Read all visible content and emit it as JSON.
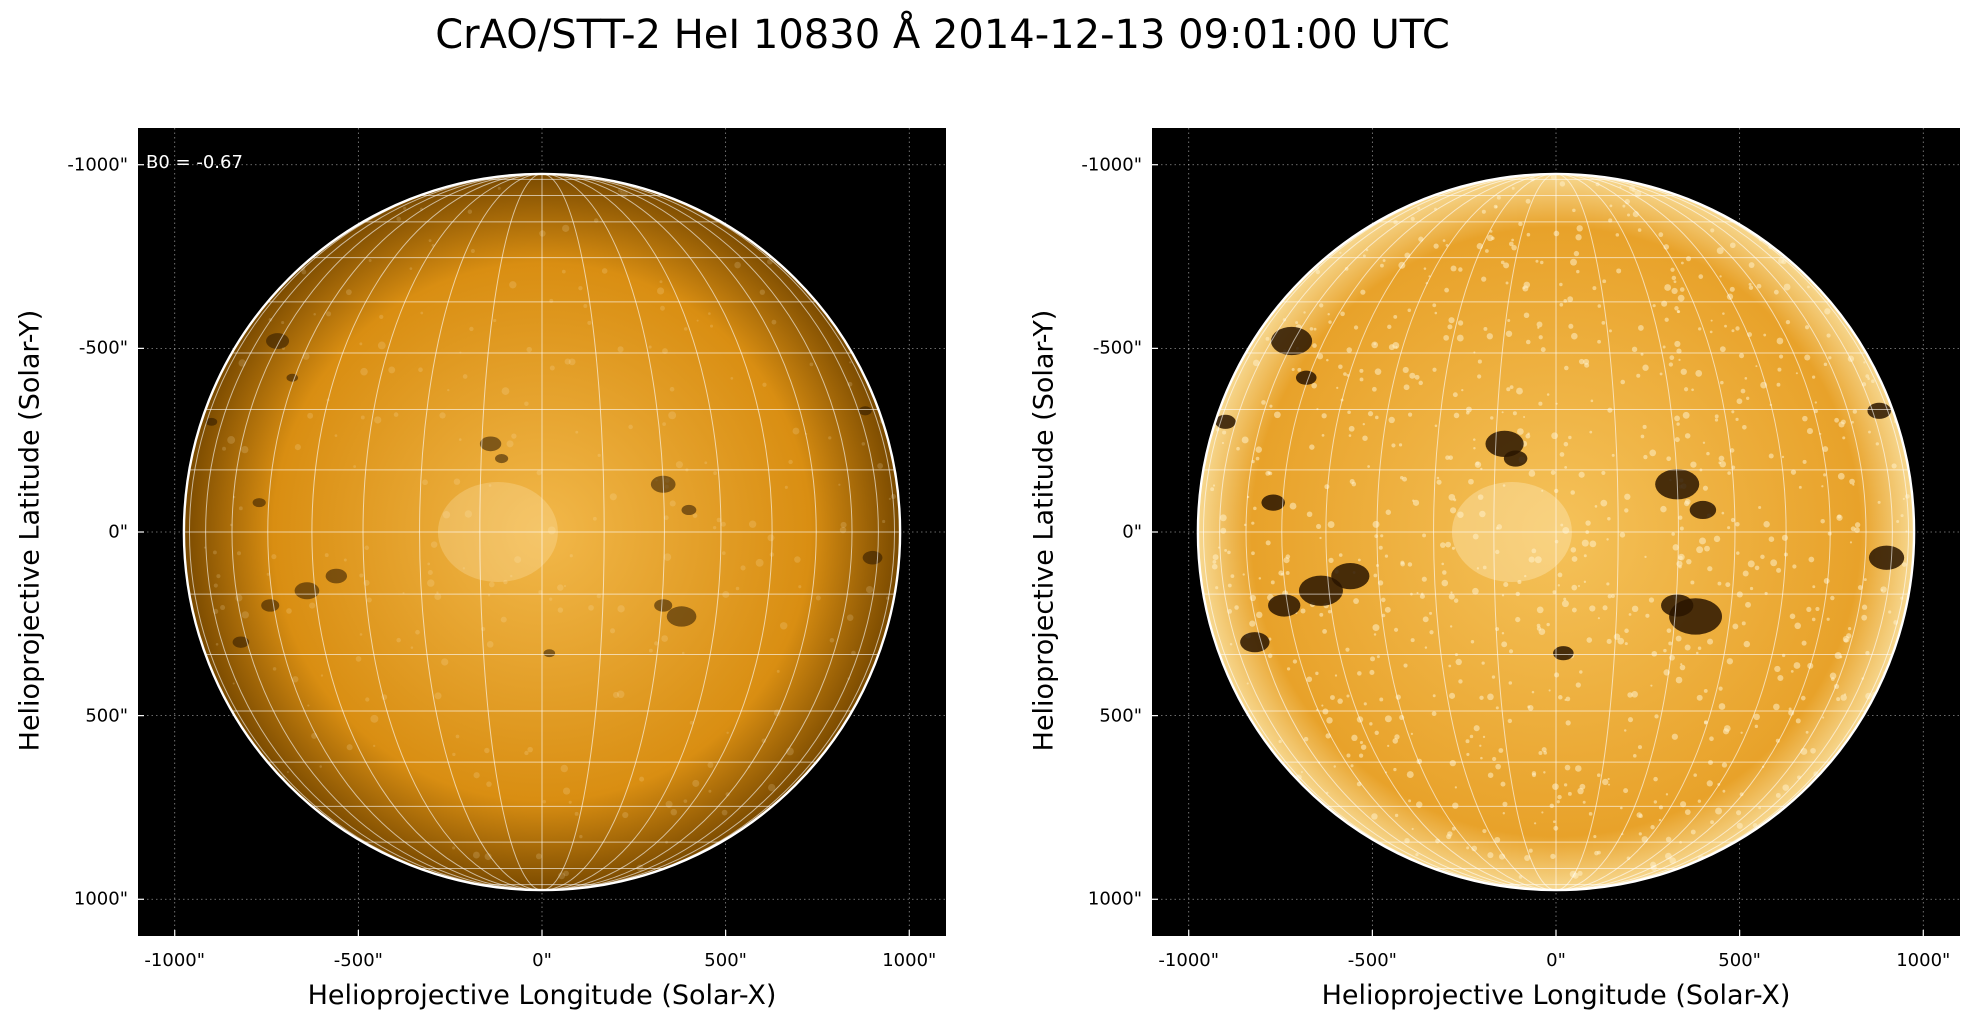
{
  "title": "CrAO/STT-2 HeI 10830 Å 2014-12-13 09:01:00 UTC",
  "colors": {
    "background": "#000000",
    "disk_center": "#f2b84a",
    "disk_mid": "#d98e12",
    "disk_limb": "#7a4a00",
    "grid": "#ffffff",
    "feature_dark": "#2a1500",
    "feature_bright": "#fff0c8"
  },
  "panels": [
    {
      "id": "left",
      "xlabel": "Helioprojective Longitude (Solar-X)",
      "ylabel": "Helioprojective Latitude (Solar-Y)",
      "annotation": "B0 = -0.67",
      "xticks": [
        "-1000\"",
        "-500\"",
        "0\"",
        "500\"",
        "1000\""
      ],
      "yticks": [
        "1000\"",
        "500\"",
        "0\"",
        "-500\"",
        "-1000\""
      ],
      "style": "smooth"
    },
    {
      "id": "right",
      "xlabel": "Helioprojective Longitude (Solar-X)",
      "ylabel": "Helioprojective Latitude (Solar-Y)",
      "annotation": "",
      "xticks": [
        "-1000\"",
        "-500\"",
        "0\"",
        "500\"",
        "1000\""
      ],
      "yticks": [
        "1000\"",
        "500\"",
        "0\"",
        "-500\"",
        "-1000\""
      ],
      "style": "enhanced"
    }
  ],
  "axis": {
    "tick_values_arcsec": [
      -1000,
      -500,
      0,
      500,
      1000
    ],
    "range_arcsec": [
      -1100,
      1100
    ],
    "solar_radius_arcsec": 975
  }
}
